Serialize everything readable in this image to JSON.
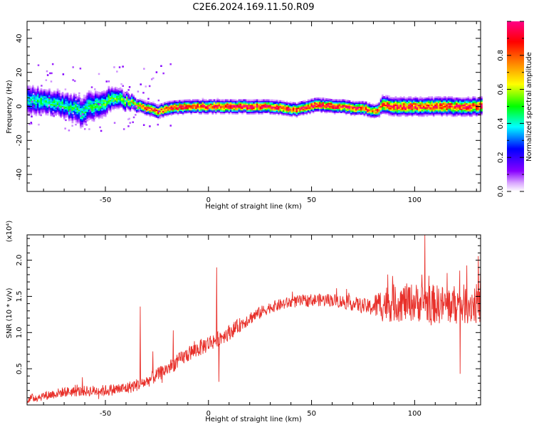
{
  "title": "C2E6.2024.169.11.50.R09",
  "colors": {
    "snr_line": "#e8302a",
    "spectrogram_ridge": "#ff2a1a",
    "axis": "#000000"
  },
  "chart_data": [
    {
      "type": "heatmap",
      "panel": "spectrogram",
      "xlabel": "Height of straight line (km)",
      "ylabel": "Frequency (Hz)",
      "xlim": [
        -88,
        132
      ],
      "ylim": [
        -50,
        50
      ],
      "x_ticks": [
        -50,
        0,
        50,
        100
      ],
      "y_ticks": [
        -40,
        -20,
        0,
        20,
        40
      ],
      "colorbar": {
        "label": "Normalized spectral amplitude",
        "range": [
          0.0,
          1.0
        ],
        "ticks": [
          0.0,
          0.2,
          0.4,
          0.6,
          0.8
        ],
        "colormap": [
          "#ffffff",
          "#8800ff",
          "#0000ff",
          "#00ffff",
          "#00ff00",
          "#ffff00",
          "#ff8800",
          "#ff0000",
          "#ff00aa"
        ]
      },
      "ridge": {
        "x": [
          -88,
          -80,
          -70,
          -62,
          -58,
          -50,
          -45,
          -40,
          -35,
          -30,
          -25,
          -20,
          -10,
          0,
          10,
          20,
          30,
          38,
          42,
          48,
          52,
          55,
          60,
          65,
          70,
          75,
          78,
          80,
          82,
          84,
          90,
          100,
          110,
          120,
          132
        ],
        "freq": [
          4,
          3,
          1,
          -3,
          0,
          3,
          5,
          3,
          1,
          -1,
          -3,
          -1,
          0,
          0,
          0,
          0,
          0,
          -1,
          -2,
          0,
          1,
          1,
          0,
          0,
          -1,
          -1,
          -2,
          -3,
          -2,
          1,
          0,
          0,
          0,
          0,
          0
        ],
        "halfwidth": [
          7,
          6,
          6,
          7,
          7,
          6,
          5,
          4,
          3,
          3,
          3,
          3,
          3,
          3,
          3,
          3,
          3,
          3,
          3,
          3,
          3,
          3,
          3,
          3,
          3,
          3,
          3,
          3,
          3,
          4,
          4,
          4,
          4,
          4,
          4
        ],
        "peak_amplitude": [
          0.4,
          0.45,
          0.45,
          0.45,
          0.45,
          0.5,
          0.5,
          0.55,
          0.7,
          0.8,
          0.85,
          0.85,
          0.9,
          0.9,
          0.95,
          0.95,
          0.95,
          0.9,
          0.85,
          0.9,
          0.95,
          0.95,
          0.95,
          0.9,
          0.9,
          0.85,
          0.8,
          0.75,
          0.8,
          0.85,
          0.9,
          0.9,
          0.9,
          0.9,
          0.9
        ]
      }
    },
    {
      "type": "line",
      "panel": "snr",
      "xlabel": "Height of straight line (km)",
      "ylabel": "SNR (10 * v/v)",
      "y_multiplier": "(x10⁴)",
      "xlim": [
        -88,
        132
      ],
      "ylim": [
        0,
        23500
      ],
      "x_ticks": [
        -50,
        0,
        50,
        100
      ],
      "y_ticks": [
        5000,
        10000,
        15000,
        20000
      ],
      "trend": {
        "x": [
          -88,
          -70,
          -50,
          -40,
          -30,
          -20,
          -10,
          0,
          10,
          20,
          30,
          40,
          50,
          60,
          70,
          78,
          85,
          100,
          115,
          132
        ],
        "snr": [
          800,
          1800,
          2000,
          2300,
          3200,
          5000,
          7000,
          8500,
          10000,
          12000,
          13500,
          14200,
          14500,
          14500,
          14000,
          13500,
          14000,
          14200,
          13800,
          14000
        ]
      },
      "noise_amplitude": {
        "x": [
          -88,
          -30,
          0,
          30,
          60,
          78,
          85,
          132
        ],
        "amp": [
          600,
          900,
          1200,
          800,
          900,
          1100,
          2600,
          2800
        ]
      },
      "spikes": [
        {
          "x": -33,
          "snr": 13600
        },
        {
          "x": -27,
          "snr": 7400
        },
        {
          "x": -17,
          "snr": 10300
        },
        {
          "x": 4,
          "snr": 19000
        },
        {
          "x": 5,
          "snr": 3200
        },
        {
          "x": 105,
          "snr": 23500
        },
        {
          "x": 108,
          "snr": 11000
        },
        {
          "x": 122,
          "snr": 4300
        }
      ]
    }
  ]
}
